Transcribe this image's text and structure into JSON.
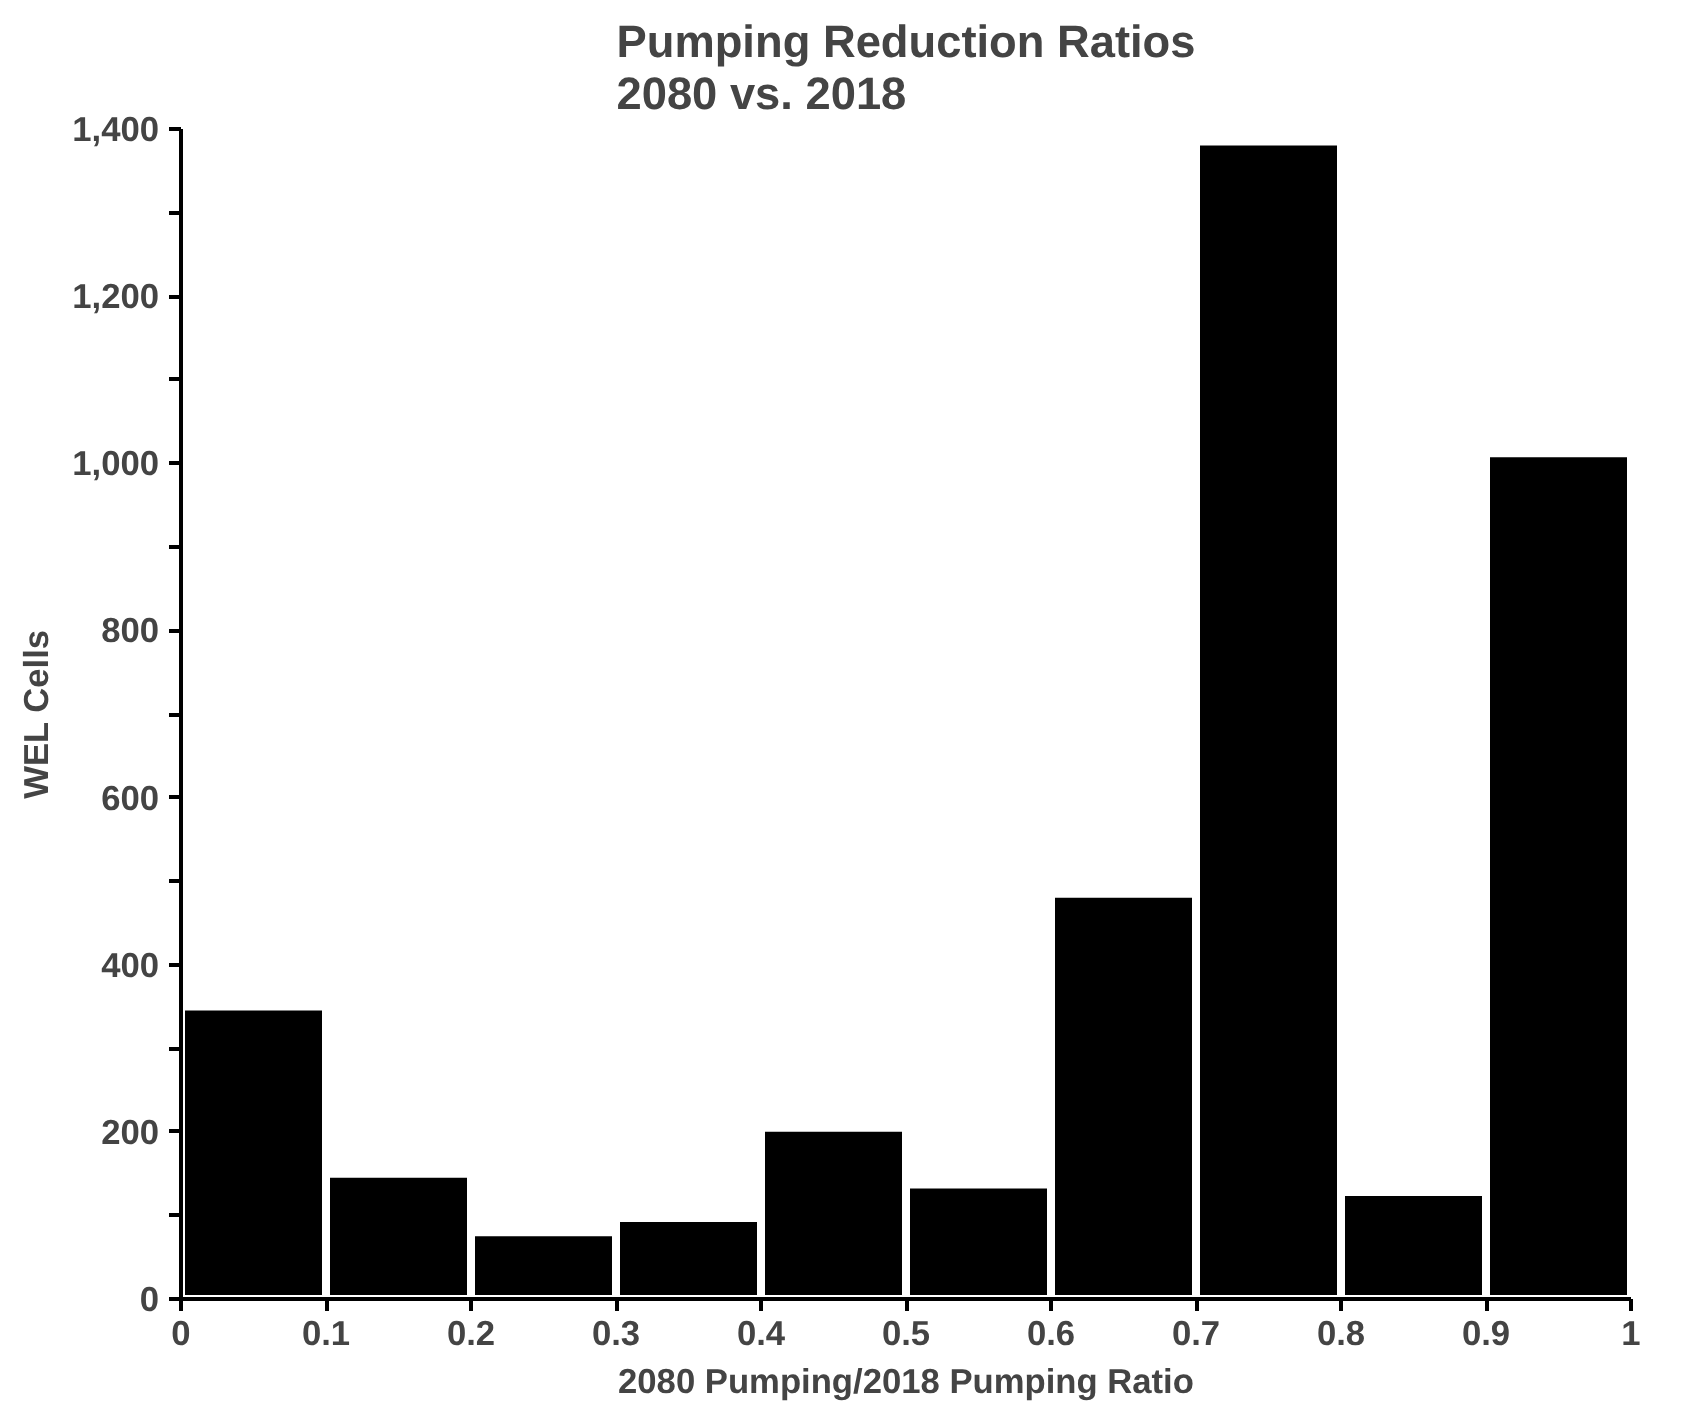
{
  "chart_data": {
    "type": "histogram",
    "title": "Pumping Reduction Ratios\n2080 vs. 2018",
    "xlabel": "2080 Pumping/2018 Pumping Ratio",
    "ylabel": "WEL Cells",
    "bins": [
      0,
      0.1,
      0.2,
      0.3,
      0.4,
      0.5,
      0.6,
      0.7,
      0.8,
      0.9,
      1
    ],
    "values": [
      350,
      150,
      80,
      97,
      205,
      137,
      485,
      1385,
      128,
      1012
    ],
    "color": "#000000",
    "xlim": [
      0,
      1
    ],
    "xticks": [
      0,
      0.1,
      0.2,
      0.3,
      0.4,
      0.5,
      0.6,
      0.7,
      0.8,
      0.9,
      1
    ],
    "ylim": [
      0,
      1400
    ],
    "yticks": [
      0,
      {
        "value": 100,
        "label": null
      },
      {
        "value": 200,
        "label": "200"
      },
      {
        "value": 300,
        "label": null
      },
      {
        "value": 400,
        "label": "400"
      },
      {
        "value": 500,
        "label": null
      },
      {
        "value": 600,
        "label": "600"
      },
      {
        "value": 700,
        "label": null
      },
      {
        "value": 800,
        "label": "800"
      },
      {
        "value": 900,
        "label": null
      },
      {
        "value": 1000,
        "label": "1,000"
      },
      {
        "value": 1100,
        "label": null
      },
      {
        "value": 1200,
        "label": "1,200"
      },
      {
        "value": 1300,
        "label": null
      },
      {
        "value": 1400,
        "label": "1,400"
      }
    ],
    "grid": false
  }
}
